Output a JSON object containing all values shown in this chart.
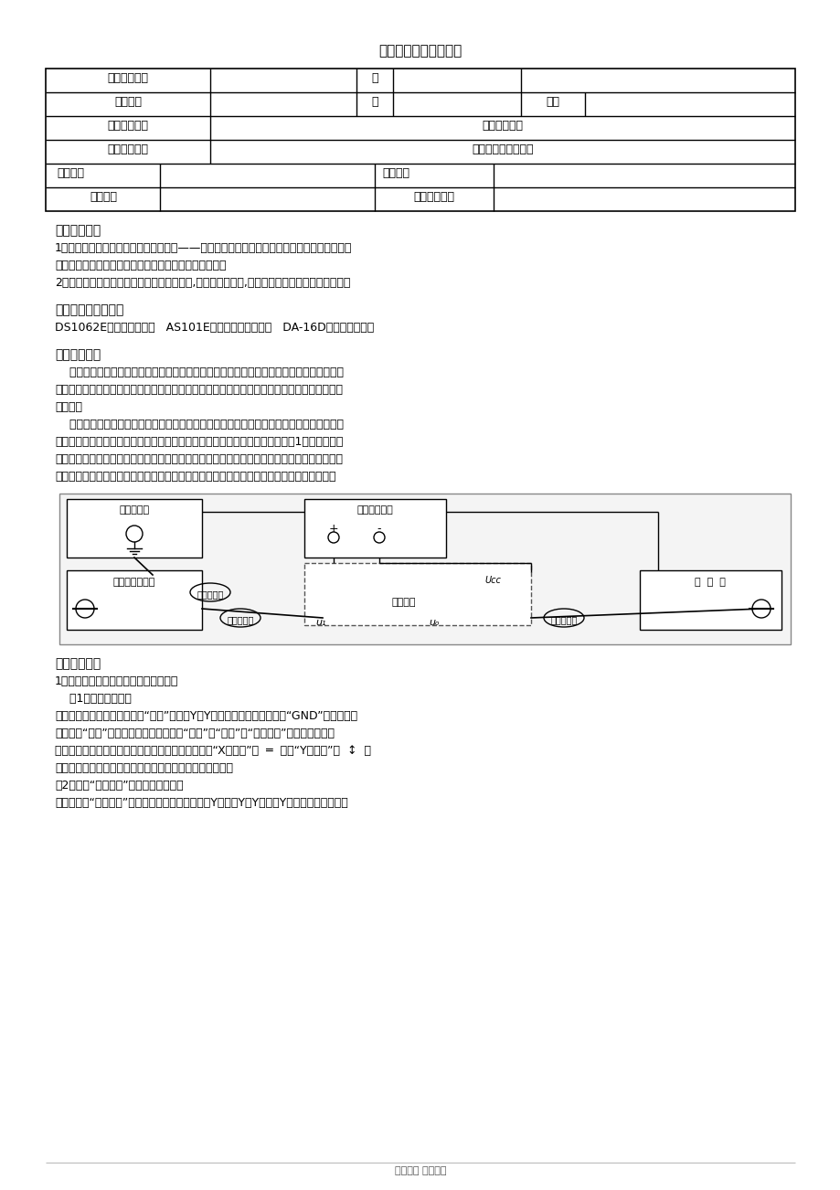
{
  "title": "广州大学学生实验报告",
  "bg_color": "#ffffff",
  "text_color": "#000000",
  "section1_title": "《实验目的》",
  "section1_lines": [
    "1、学习电子电路实验中常用的电子仪器——示波器、函数信号发生器、直流稳压电源、交流毫",
    "伏表、频率计等的主要技术指标、性能及正确使用方法。",
    "2、初步掌握用双踪示波器观察正弦信号波形,锅齿波信号波形,方波波形和读取波形参数的方法。"
  ],
  "section2_title": "《实验仪器与材料》",
  "section2_line": "DS1062E数字示波器一台   AS101E函数信号发生器一台   DA-16D交流毫伏表一台",
  "section3_title": "《实验原理》",
  "section3_lines": [
    "    在模拟电子电路实验中，经常使用的电子仪器有示波器、函数信号发生器、直流稳压电源、",
    "交流毫伏表及频率计等。它们和万用电表一起，可以完成对模拟电子电路的静态和动态工作情况",
    "的测试。",
    "    实验中要对各种电子仪器进行综合使用，可按照信号流向，以连线简捷，调节顺手，观察与",
    "读数方便等原则进行合理布局。各仪器与被测实验装置之间的布局与连接如图－1所示。接线时",
    "应注意，为防止外界干扰，各仪器的共公接地端应连接在一起，称共地。信号源和交流毫伏表的",
    "引线通常用屏蔽线或专用电缆线，示波器接线使用专用电缆线，直流电源的接线用普通导线。"
  ],
  "section4_title": "《实验步骤》",
  "section4_lines": [
    "1、用机内校正信号对示波器进行自检。",
    "    （1）扫描基线调节",
    "将示波器的显示方式开关置于“单踪”显示（Y或Y），输入耦合方式开关置“GND”，触发方式",
    "开关置于“自动”。开启电源开关后，调节“辉度”、“聚焦”、“辅助聚焦”等旋鈕，使荧光",
    "屏上显示一条细而且亮度适中的扫描基线。然后调节“X轴位移”（  ═  ）和“Y轴位移”（  ↕  ）",
    "旋鈕，使扫描线位于屏幕中央，并且能上下左右移动自如。",
    "（2）测试“校正信号”波形的幅度、频率",
    "将示波器的“校正信号”通过专用电缆线引入选定的Y通道（Y或Y），将Y轴输入耦合方式开关"
  ],
  "footer": "学习文档 仅供参考",
  "label_yuan_xi": "院（系）名称",
  "label_zhuan_ye": "专业名称",
  "label_ban": "班",
  "label_bie": "别",
  "label_xue_hao": "学号",
  "label_ke_cheng": "实验课程名称",
  "label_xiang_mu": "实验项目名称",
  "label_shijian": "实验时间",
  "label_didian": "实验地点",
  "label_chengji": "实验成绩",
  "label_jiaoshi": "指导老师签名",
  "value_kecheng": "模拟电路实验",
  "value_xiangmu": "常用电子仪器的使用",
  "diag_label_jiaoliu": "交流毫伏表",
  "diag_label_zhiliu": "直流稳压电源",
  "diag_label_hanshu": "函数信号发生器",
  "diag_label_shibo": "示  波  器",
  "diag_label_beice": "被测电路",
  "diag_label_pingbi1": "屏（蔽）线",
  "diag_label_pingbi2": "屏（蔽）线",
  "diag_label_pingbi3": "屏（蔽）线",
  "diag_label_ucc": "Ucc",
  "diag_label_u1": "u₁",
  "diag_label_uo": "uₒ"
}
